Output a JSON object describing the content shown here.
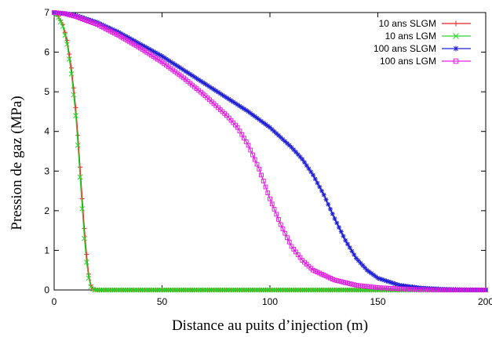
{
  "chart_data": {
    "type": "line",
    "xlabel": "Distance au puits d’injection (m)",
    "ylabel": "Pression de gaz (MPa)",
    "xlim": [
      0,
      200
    ],
    "ylim": [
      0,
      7
    ],
    "xticks": [
      0,
      50,
      100,
      150,
      200
    ],
    "yticks": [
      0,
      1,
      2,
      3,
      4,
      5,
      6,
      7
    ],
    "grid": false,
    "legend_position": "top-right",
    "series": [
      {
        "name": "10 ans SLGM",
        "color": "#e8221e",
        "marker": "plus",
        "x": [
          0,
          2,
          4,
          6,
          8,
          10,
          11,
          12,
          13,
          14,
          15,
          16,
          17,
          18,
          19,
          20,
          25,
          40,
          60,
          80,
          100,
          120,
          140,
          160,
          180,
          200
        ],
        "y": [
          7.0,
          6.9,
          6.7,
          6.3,
          5.6,
          4.6,
          3.9,
          3.1,
          2.3,
          1.55,
          0.9,
          0.4,
          0.12,
          0.03,
          0.01,
          0.0,
          0.0,
          0.0,
          0.0,
          0.0,
          0.0,
          0.0,
          0.0,
          0.0,
          0.0,
          0.0
        ]
      },
      {
        "name": "10 ans LGM",
        "color": "#2cd42c",
        "marker": "cross",
        "x": [
          0,
          2,
          4,
          6,
          8,
          10,
          11,
          12,
          13,
          14,
          15,
          16,
          17,
          18,
          19,
          20,
          25,
          40,
          60,
          80,
          100,
          120,
          140,
          160,
          180,
          200
        ],
        "y": [
          7.0,
          6.88,
          6.65,
          6.2,
          5.45,
          4.4,
          3.65,
          2.85,
          2.05,
          1.3,
          0.7,
          0.3,
          0.08,
          0.02,
          0.0,
          0.0,
          0.0,
          0.0,
          0.0,
          0.0,
          0.0,
          0.0,
          0.0,
          0.0,
          0.0,
          0.0
        ]
      },
      {
        "name": "100 ans SLGM",
        "color": "#1f1fd6",
        "marker": "star",
        "x": [
          0,
          5,
          10,
          20,
          30,
          40,
          50,
          60,
          70,
          80,
          90,
          100,
          110,
          115,
          120,
          125,
          130,
          135,
          140,
          145,
          150,
          160,
          170,
          180,
          190,
          200
        ],
        "y": [
          7.0,
          6.98,
          6.93,
          6.75,
          6.5,
          6.2,
          5.9,
          5.55,
          5.2,
          4.85,
          4.5,
          4.1,
          3.6,
          3.3,
          2.9,
          2.4,
          1.8,
          1.25,
          0.8,
          0.5,
          0.3,
          0.12,
          0.05,
          0.02,
          0.01,
          0.0
        ]
      },
      {
        "name": "100 ans LGM",
        "color": "#e020e0",
        "marker": "square",
        "x": [
          0,
          5,
          10,
          20,
          30,
          40,
          50,
          60,
          70,
          80,
          85,
          90,
          95,
          100,
          105,
          110,
          115,
          120,
          130,
          140,
          150,
          160,
          170,
          180,
          190,
          200
        ],
        "y": [
          7.0,
          6.97,
          6.9,
          6.7,
          6.42,
          6.1,
          5.75,
          5.35,
          4.9,
          4.4,
          4.1,
          3.65,
          3.05,
          2.3,
          1.65,
          1.1,
          0.75,
          0.5,
          0.25,
          0.12,
          0.06,
          0.03,
          0.01,
          0.0,
          0.0,
          0.0
        ]
      }
    ]
  }
}
